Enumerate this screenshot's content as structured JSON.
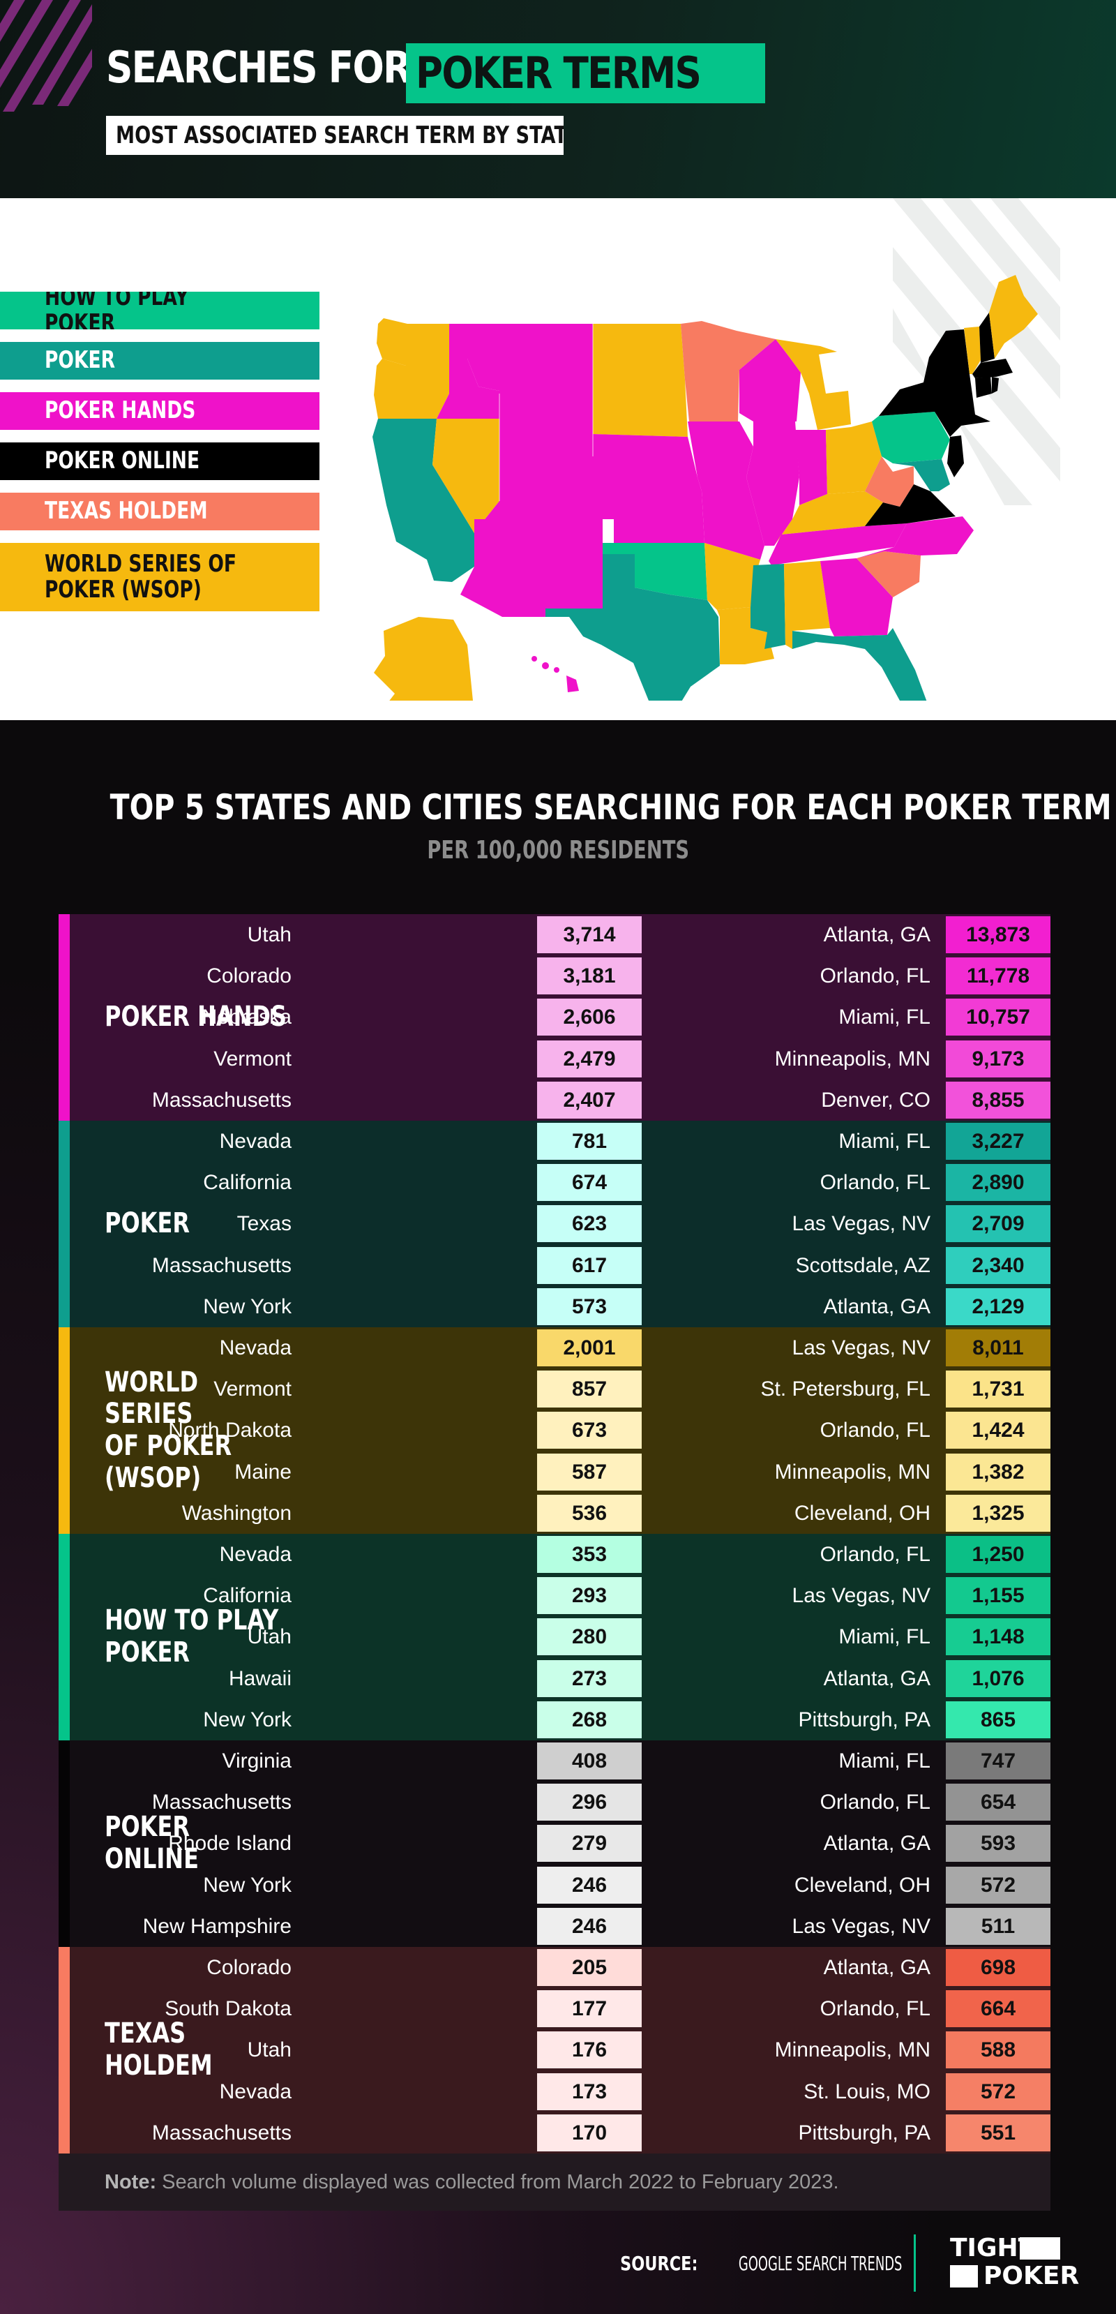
{
  "header": {
    "title_main": "SEARCHES FOR",
    "title_highlight": "POKER TERMS",
    "subtitle": "MOST ASSOCIATED SEARCH TERM BY STATE"
  },
  "colors": {
    "how_to_play_poker": "#05c48a",
    "poker": "#0e9e8e",
    "poker_hands": "#ef12c9",
    "poker_online": "#000000",
    "texas_holdem": "#f87b61",
    "wsop": "#f6b90f"
  },
  "legend": [
    {
      "label": "HOW TO PLAY POKER",
      "color": "#05c48a",
      "text_color": "#111111"
    },
    {
      "label": "POKER",
      "color": "#0e9e8e",
      "text_color": "#ffffff"
    },
    {
      "label": "POKER HANDS",
      "color": "#ef12c9",
      "text_color": "#ffffff"
    },
    {
      "label": "POKER ONLINE",
      "color": "#000000",
      "text_color": "#ffffff"
    },
    {
      "label": "TEXAS HOLDEM",
      "color": "#f87b61",
      "text_color": "#ffffff"
    },
    {
      "label": "WORLD SERIES OF\nPOKER (WSOP)",
      "color": "#f6b90f",
      "text_color": "#111111"
    }
  ],
  "table": {
    "title": "TOP 5 STATES AND CITIES SEARCHING FOR EACH POKER TERM",
    "subtitle": "PER 100,000 RESIDENTS",
    "groups": [
      {
        "label": "POKER HANDS",
        "accent": "#ef12c9",
        "bg": "#3a0f34",
        "state_cell_color": "#f7b3ec",
        "rows": [
          {
            "state": "Utah",
            "state_value": "3,714",
            "city": "Atlanta, GA",
            "city_value": "13,873",
            "city_color": "#f21fd0"
          },
          {
            "state": "Colorado",
            "state_value": "3,181",
            "city": "Orlando, FL",
            "city_value": "11,778",
            "city_color": "#f22cd2"
          },
          {
            "state": "Nebraska",
            "state_value": "2,606",
            "city": "Miami, FL",
            "city_value": "10,757",
            "city_color": "#f23bd5"
          },
          {
            "state": "Vermont",
            "state_value": "2,479",
            "city": "Minneapolis, MN",
            "city_value": "9,173",
            "city_color": "#f24ad8"
          },
          {
            "state": "Massachusetts",
            "state_value": "2,407",
            "city": "Denver, CO",
            "city_value": "8,855",
            "city_color": "#f252da"
          }
        ]
      },
      {
        "label": "POKER",
        "accent": "#0e9e8e",
        "bg": "#0c2d2a",
        "state_cell_color": "#c6fff7",
        "rows": [
          {
            "state": "Nevada",
            "state_value": "781",
            "city": "Miami, FL",
            "city_value": "3,227",
            "city_color": "#12a596"
          },
          {
            "state": "California",
            "state_value": "674",
            "city": "Orlando, FL",
            "city_value": "2,890",
            "city_color": "#1bb5a4"
          },
          {
            "state": "Texas",
            "state_value": "623",
            "city": "Las Vegas, NV",
            "city_value": "2,709",
            "city_color": "#24c2b1"
          },
          {
            "state": "Massachusetts",
            "state_value": "617",
            "city": "Scottsdale, AZ",
            "city_value": "2,340",
            "city_color": "#2fcebd"
          },
          {
            "state": "New York",
            "state_value": "573",
            "city": "Atlanta, GA",
            "city_value": "2,129",
            "city_color": "#3ad9c8"
          }
        ]
      },
      {
        "label": "WORLD SERIES\nOF POKER\n(WSOP)",
        "accent": "#f6b90f",
        "bg": "#3d3408",
        "state_cell_color": "#fff1be",
        "rows": [
          {
            "state": "Nevada",
            "state_value": "2,001",
            "state_color": "#f9d86a",
            "city": "Las Vegas, NV",
            "city_value": "8,011",
            "city_color": "#a27d06"
          },
          {
            "state": "Vermont",
            "state_value": "857",
            "city": "St. Petersburg, FL",
            "city_value": "1,731",
            "city_color": "#fbe389"
          },
          {
            "state": "North Dakota",
            "state_value": "673",
            "city": "Orlando, FL",
            "city_value": "1,424",
            "city_color": "#fbe591"
          },
          {
            "state": "Maine",
            "state_value": "587",
            "city": "Minneapolis, MN",
            "city_value": "1,382",
            "city_color": "#fbe794"
          },
          {
            "state": "Washington",
            "state_value": "536",
            "city": "Cleveland, OH",
            "city_value": "1,325",
            "city_color": "#fbe99a"
          }
        ]
      },
      {
        "label": "HOW TO PLAY POKER",
        "accent": "#05c48a",
        "bg": "#0c3327",
        "state_cell_color": "#c9ffe9",
        "rows": [
          {
            "state": "Nevada",
            "state_value": "353",
            "state_color": "#b4ffe1",
            "city": "Orlando, FL",
            "city_value": "1,250",
            "city_color": "#0bbf86"
          },
          {
            "state": "California",
            "state_value": "293",
            "city": "Las Vegas, NV",
            "city_value": "1,155",
            "city_color": "#13c98f"
          },
          {
            "state": "Utah",
            "state_value": "280",
            "city": "Miami, FL",
            "city_value": "1,148",
            "city_color": "#17cc92"
          },
          {
            "state": "Hawaii",
            "state_value": "273",
            "city": "Atlanta, GA",
            "city_value": "1,076",
            "city_color": "#1fd49a"
          },
          {
            "state": "New York",
            "state_value": "268",
            "city": "Pittsburgh, PA",
            "city_value": "865",
            "city_color": "#34e8ad"
          }
        ]
      },
      {
        "label": "POKER ONLINE",
        "accent": "#000000",
        "bg": "#120d12",
        "state_cell_color": "#eeeeee",
        "rows": [
          {
            "state": "Virginia",
            "state_value": "408",
            "state_color": "#cfcfcf",
            "city": "Miami, FL",
            "city_value": "747",
            "city_color": "#7a7a7a"
          },
          {
            "state": "Massachusetts",
            "state_value": "296",
            "state_color": "#e5e5e5",
            "city": "Orlando, FL",
            "city_value": "654",
            "city_color": "#939393"
          },
          {
            "state": "Rhode Island",
            "state_value": "279",
            "state_color": "#e8e8e8",
            "city": "Atlanta, GA",
            "city_value": "593",
            "city_color": "#a2a2a2"
          },
          {
            "state": "New York",
            "state_value": "246",
            "city": "Cleveland, OH",
            "city_value": "572",
            "city_color": "#a8a8a8"
          },
          {
            "state": "New Hampshire",
            "state_value": "246",
            "city": "Las Vegas, NV",
            "city_value": "511",
            "city_color": "#b8b8b8"
          }
        ]
      },
      {
        "label": "TEXAS HOLDEM",
        "accent": "#f87b61",
        "bg": "#3a1a1e",
        "state_cell_color": "#ffe8e8",
        "rows": [
          {
            "state": "Colorado",
            "state_value": "205",
            "state_color": "#ffdcd9",
            "city": "Atlanta, GA",
            "city_value": "698",
            "city_color": "#ef5c44"
          },
          {
            "state": "South Dakota",
            "state_value": "177",
            "city": "Orlando, FL",
            "city_value": "664",
            "city_color": "#f1644b"
          },
          {
            "state": "Utah",
            "state_value": "176",
            "city": "Minneapolis, MN",
            "city_value": "588",
            "city_color": "#f47a5f"
          },
          {
            "state": "Nevada",
            "state_value": "173",
            "city": "St. Louis, MO",
            "city_value": "572",
            "city_color": "#f57f65"
          },
          {
            "state": "Massachusetts",
            "state_value": "170",
            "city": "Pittsburgh, PA",
            "city_value": "551",
            "city_color": "#f6866c"
          }
        ]
      }
    ]
  },
  "note": {
    "label": "Note:",
    "text": " Search volume displayed was collected from March 2022 to February 2023."
  },
  "footer": {
    "source_label": "SOURCE:",
    "source_text": " GOOGLE SEARCH TRENDS",
    "logo_line1": "TIGHT",
    "logo_line2": "POKER"
  }
}
